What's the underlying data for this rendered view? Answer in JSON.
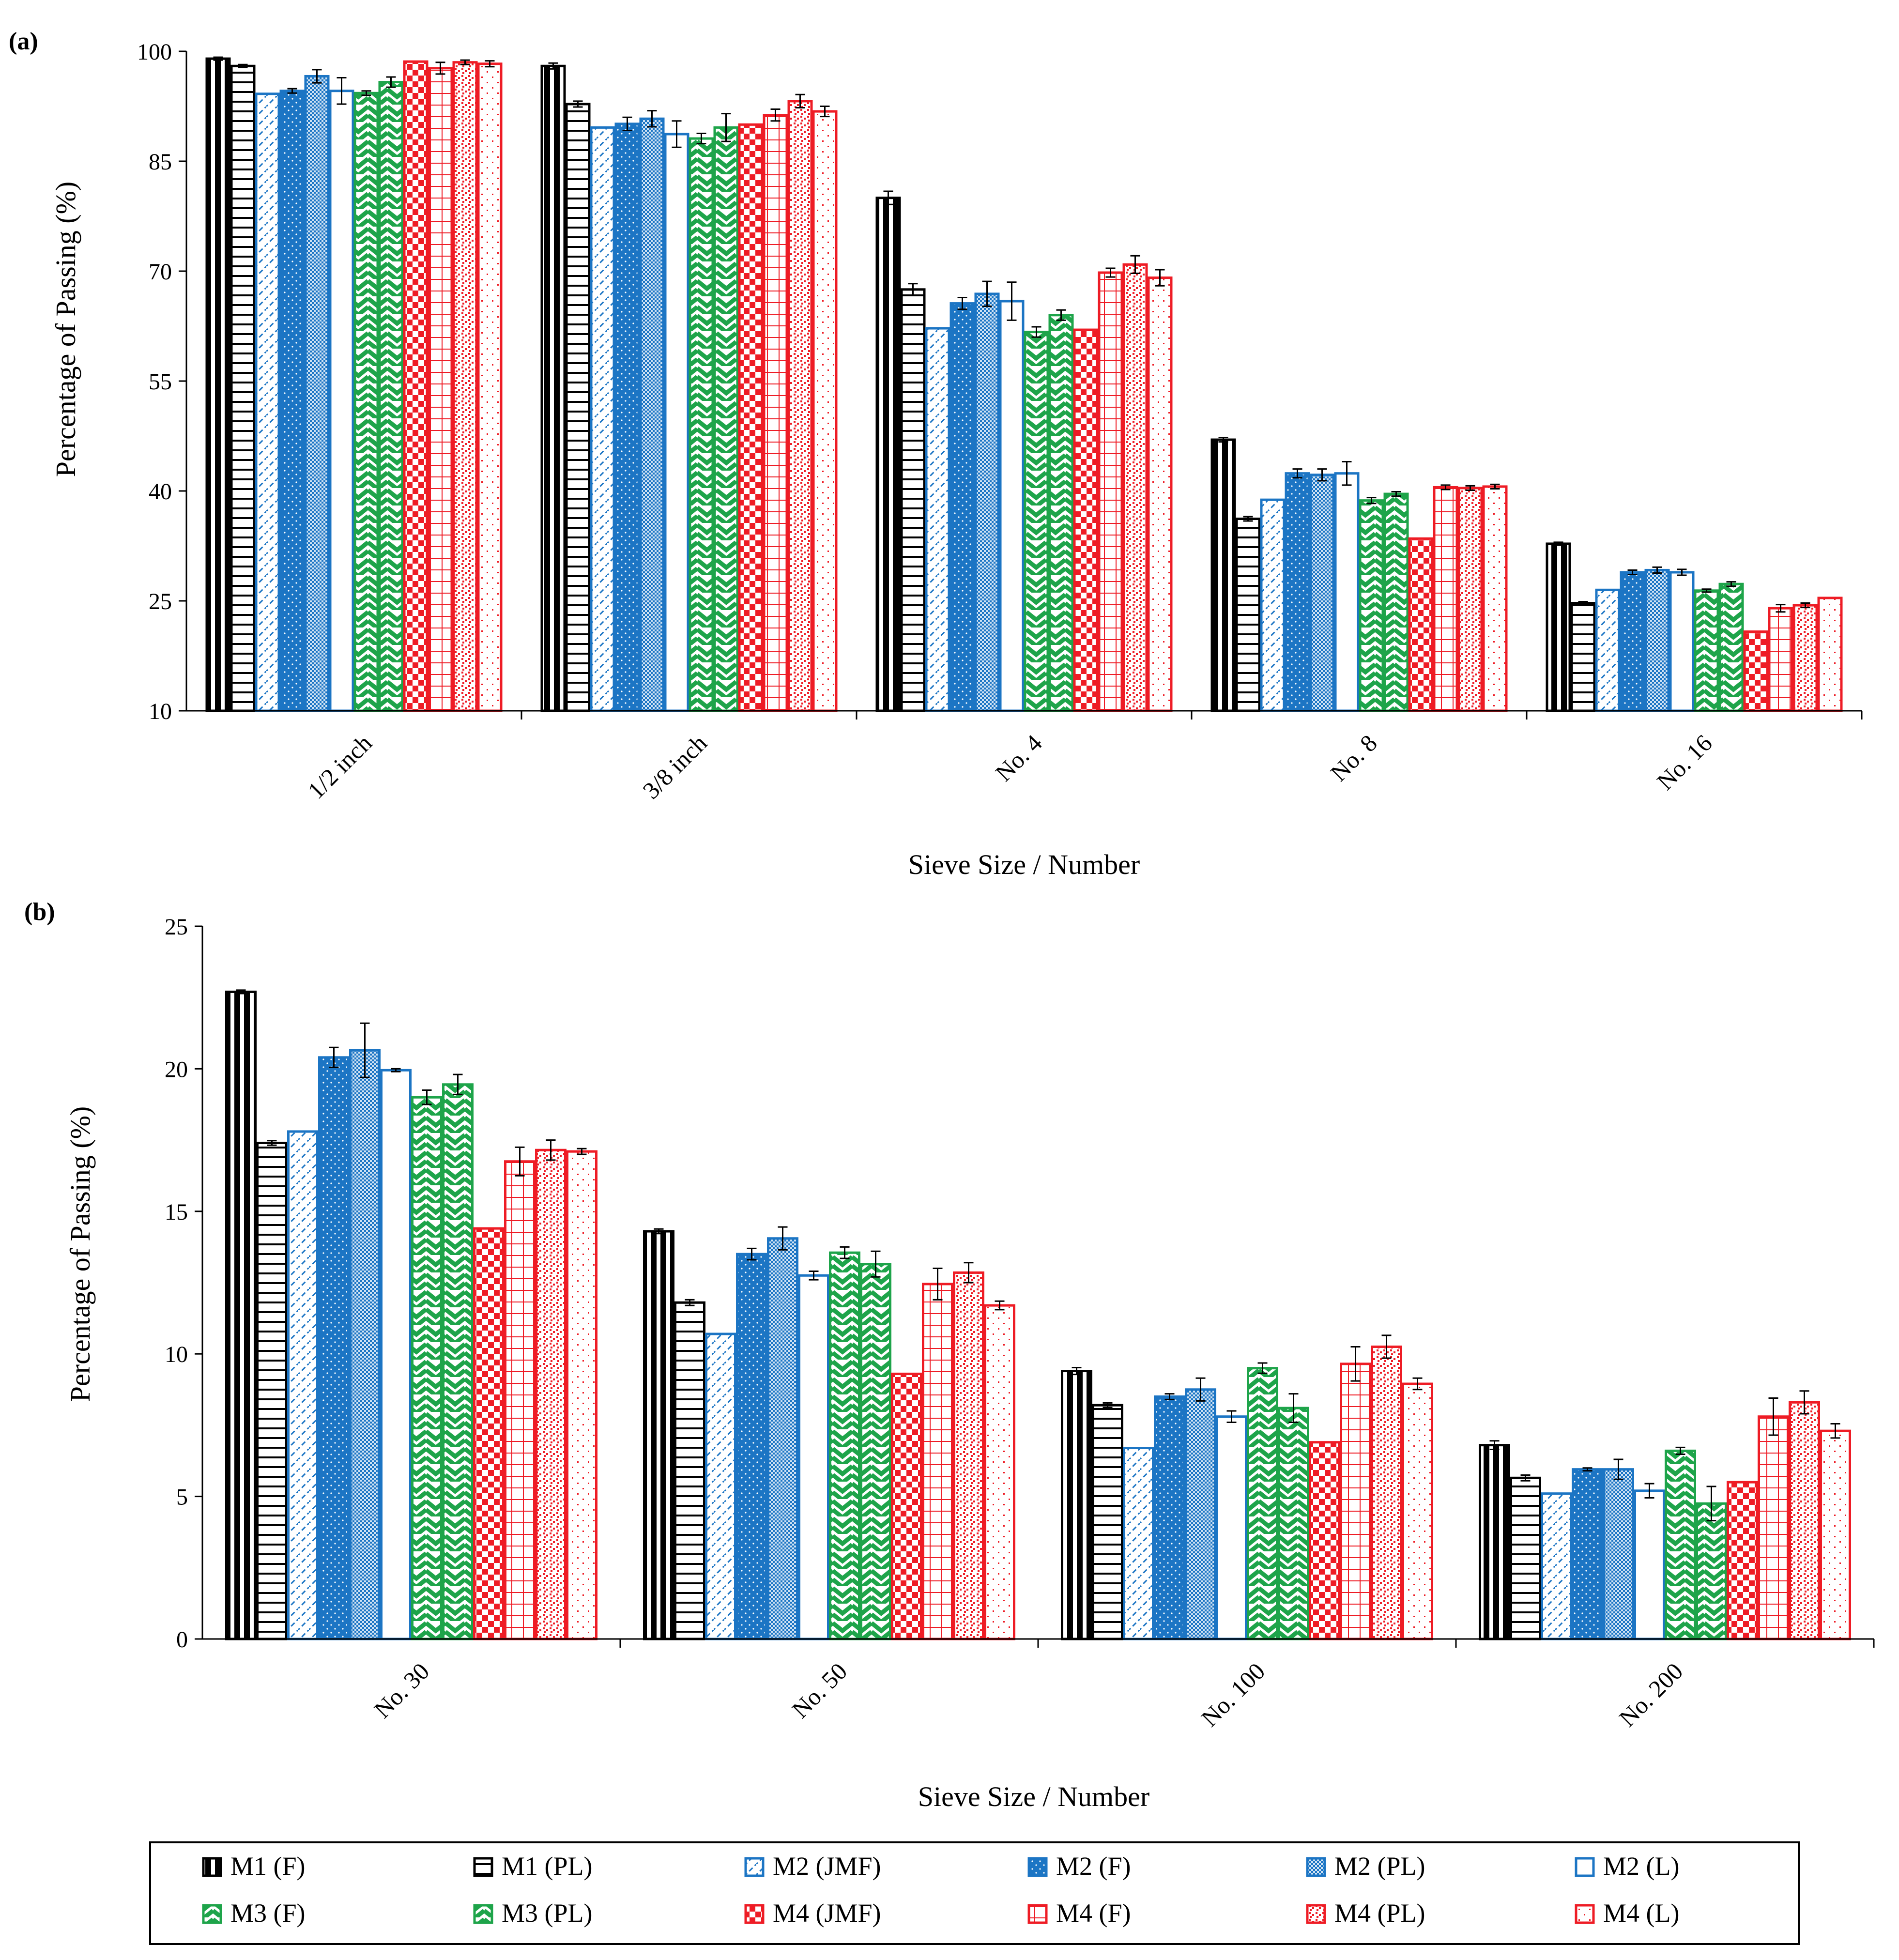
{
  "chart_data": [
    {
      "panel_label": "(a)",
      "type": "bar",
      "xlabel": "Sieve Size / Number",
      "ylabel": "Percentage of Passing (%)",
      "ylim": [
        10,
        100
      ],
      "yticks": [
        10,
        25,
        40,
        55,
        70,
        85,
        100
      ],
      "categories": [
        "1/2 inch",
        "3/8 inch",
        "No. 4",
        "No. 8",
        "No. 16"
      ],
      "series": [
        {
          "name": "M1 (F)",
          "values": [
            99.0,
            98.0,
            80.0,
            47.0,
            32.8
          ],
          "errors": [
            0.2,
            0.4,
            0.9,
            0.3,
            0.2
          ]
        },
        {
          "name": "M1 (PL)",
          "values": [
            98.0,
            92.8,
            67.5,
            36.2,
            24.7
          ],
          "errors": [
            0.2,
            0.4,
            0.8,
            0.3,
            0.2
          ]
        },
        {
          "name": "M2 (JMF)",
          "values": [
            94.2,
            89.6,
            62.2,
            38.8,
            26.5
          ],
          "errors": [
            0,
            0,
            0,
            0,
            0
          ]
        },
        {
          "name": "M2 (F)",
          "values": [
            94.6,
            90.1,
            65.6,
            42.4,
            28.9
          ],
          "errors": [
            0.3,
            0.9,
            0.8,
            0.6,
            0.3
          ]
        },
        {
          "name": "M2 (PL)",
          "values": [
            96.6,
            90.8,
            66.9,
            42.2,
            29.2
          ],
          "errors": [
            0.9,
            1.1,
            1.7,
            0.8,
            0.4
          ]
        },
        {
          "name": "M2 (L)",
          "values": [
            94.6,
            88.7,
            65.9,
            42.4,
            28.9
          ],
          "errors": [
            1.8,
            1.8,
            2.6,
            1.6,
            0.4
          ]
        },
        {
          "name": "M3 (F)",
          "values": [
            94.3,
            88.1,
            61.7,
            38.7,
            26.4
          ],
          "errors": [
            0.3,
            0.7,
            0.7,
            0.4,
            0.2
          ]
        },
        {
          "name": "M3 (PL)",
          "values": [
            95.8,
            89.6,
            64.0,
            39.6,
            27.3
          ],
          "errors": [
            0.7,
            1.9,
            0.7,
            0.3,
            0.3
          ]
        },
        {
          "name": "M4 (JMF)",
          "values": [
            98.6,
            90.0,
            62.0,
            33.5,
            20.8
          ],
          "errors": [
            0,
            0,
            0,
            0,
            0
          ]
        },
        {
          "name": "M4 (F)",
          "values": [
            97.7,
            91.3,
            69.8,
            40.5,
            24.0
          ],
          "errors": [
            0.8,
            0.8,
            0.6,
            0.3,
            0.5
          ]
        },
        {
          "name": "M4 (PL)",
          "values": [
            98.5,
            93.2,
            70.9,
            40.4,
            24.4
          ],
          "errors": [
            0.3,
            0.9,
            1.2,
            0.3,
            0.3
          ]
        },
        {
          "name": "M4 (L)",
          "values": [
            98.3,
            91.8,
            69.1,
            40.6,
            25.4
          ],
          "errors": [
            0.4,
            0.7,
            1.1,
            0.3,
            0
          ]
        }
      ]
    },
    {
      "panel_label": "(b)",
      "type": "bar",
      "xlabel": "Sieve Size / Number",
      "ylabel": "Percentage of Passing (%)",
      "ylim": [
        0,
        25
      ],
      "yticks": [
        0,
        5,
        10,
        15,
        20,
        25
      ],
      "categories": [
        "No. 30",
        "No. 50",
        "No. 100",
        "No. 200"
      ],
      "series": [
        {
          "name": "M1 (F)",
          "values": [
            22.7,
            14.3,
            9.4,
            6.8
          ],
          "errors": [
            0.06,
            0.08,
            0.12,
            0.15
          ]
        },
        {
          "name": "M1 (PL)",
          "values": [
            17.4,
            11.8,
            8.2,
            5.65
          ],
          "errors": [
            0.08,
            0.1,
            0.08,
            0.1
          ]
        },
        {
          "name": "M2 (JMF)",
          "values": [
            17.8,
            10.7,
            6.7,
            5.1
          ],
          "errors": [
            0,
            0,
            0,
            0
          ]
        },
        {
          "name": "M2 (F)",
          "values": [
            20.4,
            13.5,
            8.5,
            5.95
          ],
          "errors": [
            0.35,
            0.2,
            0.1,
            0.05
          ]
        },
        {
          "name": "M2 (PL)",
          "values": [
            20.65,
            14.05,
            8.75,
            5.95
          ],
          "errors": [
            0.95,
            0.4,
            0.4,
            0.35
          ]
        },
        {
          "name": "M2 (L)",
          "values": [
            19.95,
            12.75,
            7.8,
            5.2
          ],
          "errors": [
            0.05,
            0.15,
            0.2,
            0.25
          ]
        },
        {
          "name": "M3 (F)",
          "values": [
            19.0,
            13.55,
            9.5,
            6.6
          ],
          "errors": [
            0.25,
            0.2,
            0.18,
            0.12
          ]
        },
        {
          "name": "M3 (PL)",
          "values": [
            19.45,
            13.15,
            8.1,
            4.75
          ],
          "errors": [
            0.35,
            0.45,
            0.5,
            0.6
          ]
        },
        {
          "name": "M4 (JMF)",
          "values": [
            14.4,
            9.3,
            6.9,
            5.5
          ],
          "errors": [
            0,
            0,
            0,
            0
          ]
        },
        {
          "name": "M4 (F)",
          "values": [
            16.75,
            12.45,
            9.65,
            7.8
          ],
          "errors": [
            0.5,
            0.55,
            0.6,
            0.65
          ]
        },
        {
          "name": "M4 (PL)",
          "values": [
            17.15,
            12.85,
            10.25,
            8.3
          ],
          "errors": [
            0.35,
            0.35,
            0.4,
            0.4
          ]
        },
        {
          "name": "M4 (L)",
          "values": [
            17.1,
            11.7,
            8.95,
            7.3
          ],
          "errors": [
            0.1,
            0.15,
            0.2,
            0.25
          ]
        }
      ]
    }
  ],
  "legend_items": [
    {
      "label": "M1 (F)",
      "color": "#000000",
      "pattern": "vstripe"
    },
    {
      "label": "M1 (PL)",
      "color": "#000000",
      "pattern": "hstripe"
    },
    {
      "label": "M2 (JMF)",
      "color": "#1c75c4",
      "pattern": "diag"
    },
    {
      "label": "M2 (F)",
      "color": "#1c75c4",
      "pattern": "dots-solid"
    },
    {
      "label": "M2 (PL)",
      "color": "#1c75c4",
      "pattern": "checker-fine"
    },
    {
      "label": "M2 (L)",
      "color": "#1c75c4",
      "pattern": "empty"
    },
    {
      "label": "M3 (F)",
      "color": "#1ea44a",
      "pattern": "zigzag"
    },
    {
      "label": "M3 (PL)",
      "color": "#1ea44a",
      "pattern": "zigzag"
    },
    {
      "label": "M4 (JMF)",
      "color": "#ee1c25",
      "pattern": "checker"
    },
    {
      "label": "M4 (F)",
      "color": "#ee1c25",
      "pattern": "grid"
    },
    {
      "label": "M4 (PL)",
      "color": "#ee1c25",
      "pattern": "confetti"
    },
    {
      "label": "M4 (L)",
      "color": "#ee1c25",
      "pattern": "sparse-dots"
    }
  ]
}
